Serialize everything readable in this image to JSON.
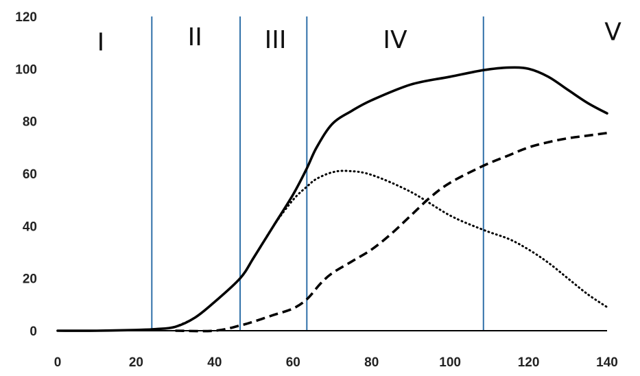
{
  "chart_data": {
    "type": "line",
    "title": "",
    "xlabel": "",
    "ylabel": "",
    "xlim": [
      0,
      140
    ],
    "ylim": [
      0,
      120
    ],
    "x_ticks": [
      0,
      20,
      40,
      60,
      80,
      100,
      120,
      140
    ],
    "y_ticks": [
      0,
      20,
      40,
      60,
      80,
      100,
      120
    ],
    "grid": false,
    "legend": "none",
    "colors": {
      "axis": "#000000",
      "divider": "#2e6fa8",
      "line": "#000000"
    },
    "region_dividers_x": [
      24,
      46.5,
      63.5,
      108.5
    ],
    "regions": [
      {
        "label": "I",
        "x": 11,
        "y": 107
      },
      {
        "label": "II",
        "x": 35,
        "y": 109
      },
      {
        "label": "III",
        "x": 55.5,
        "y": 108
      },
      {
        "label": "IV",
        "x": 86,
        "y": 108
      },
      {
        "label": "V",
        "x": 141.5,
        "y": 111
      }
    ],
    "series": [
      {
        "style": "solid",
        "x": [
          0,
          10,
          20,
          25,
          30,
          35,
          40,
          46.5,
          50,
          55,
          60,
          63.5,
          66,
          70,
          75,
          80,
          90,
          100,
          108.5,
          115,
          120,
          125,
          130,
          135,
          140
        ],
        "y": [
          0,
          0,
          0.3,
          0.6,
          1.5,
          5,
          11,
          20,
          28,
          40,
          52,
          62,
          70,
          79,
          84,
          88,
          94,
          97,
          99.5,
          100.5,
          100,
          97,
          92,
          87,
          83
        ]
      },
      {
        "style": "dotted",
        "x": [
          30,
          35,
          40,
          46.5,
          50,
          55,
          60,
          63.5,
          66,
          70,
          74,
          80,
          90,
          100,
          108.5,
          115,
          120,
          125,
          130,
          135,
          140
        ],
        "y": [
          1.5,
          5,
          11,
          20,
          28,
          40,
          50,
          55,
          58,
          60.5,
          61,
          59.5,
          53,
          44,
          38.5,
          35,
          31,
          26,
          20,
          14,
          9
        ]
      },
      {
        "style": "dashed",
        "x": [
          30,
          40,
          46.5,
          50,
          55,
          60,
          63.5,
          67,
          70,
          75,
          80,
          85,
          90,
          95,
          100,
          108.5,
          115,
          120,
          125,
          130,
          135,
          140
        ],
        "y": [
          0,
          0,
          2,
          3.5,
          6,
          8.5,
          12,
          18,
          22,
          26.5,
          31,
          37,
          44,
          51,
          56.5,
          63,
          67,
          70,
          72,
          73.5,
          74.5,
          75.5
        ]
      }
    ]
  }
}
